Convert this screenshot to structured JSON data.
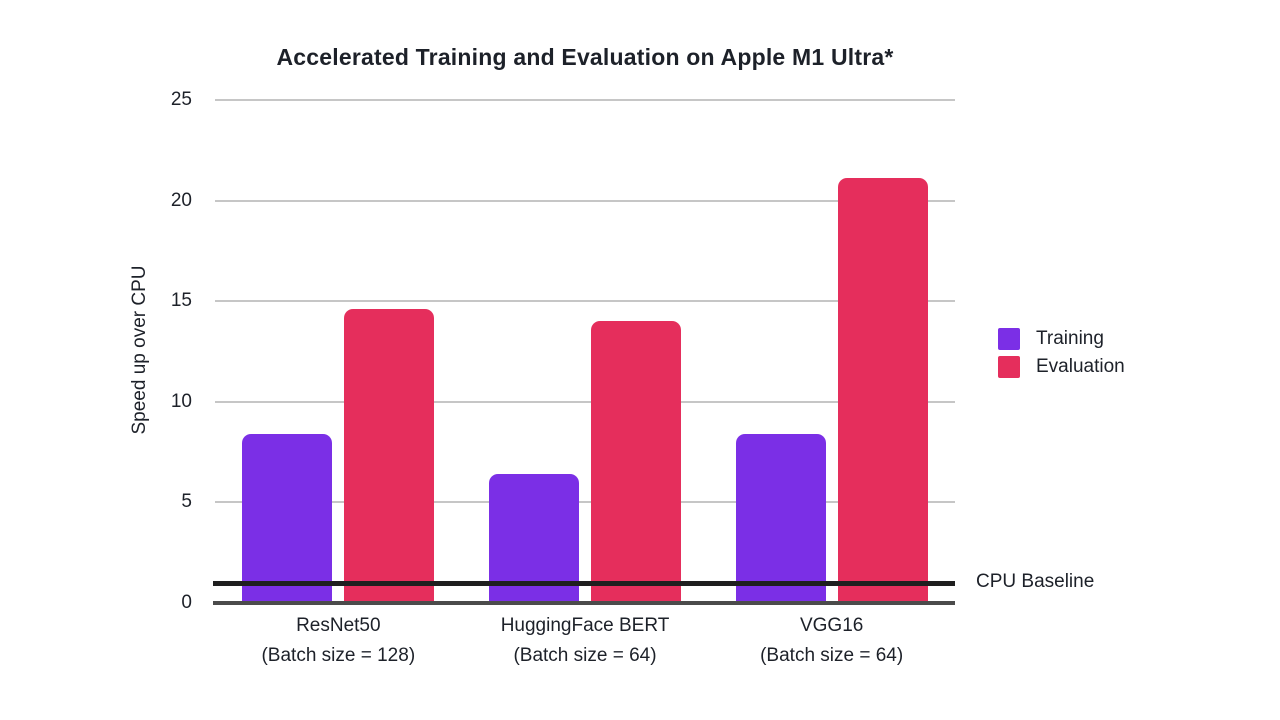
{
  "colors": {
    "background": "#FFFFFF",
    "text": "#1D2129",
    "gridline": "#C6C6C6",
    "axis_line": "#4B4B4B"
  },
  "chart_data": {
    "type": "bar",
    "title": "Accelerated Training and Evaluation on Apple M1 Ultra*",
    "ylabel": "Speed up over CPU",
    "xlabel": "",
    "ylim": [
      0,
      25
    ],
    "yticks": [
      0,
      5,
      10,
      15,
      20,
      25
    ],
    "grid": true,
    "legend_position": "right",
    "categories": [
      "ResNet50",
      "HuggingFace BERT",
      "VGG16"
    ],
    "category_sublabels": [
      "(Batch size = 128)",
      "(Batch size = 64)",
      "(Batch size = 64)"
    ],
    "series": [
      {
        "name": "Training",
        "color": "#7B2FE6",
        "values": [
          8.4,
          6.4,
          8.4
        ]
      },
      {
        "name": "Evaluation",
        "color": "#E52E5C",
        "values": [
          14.6,
          14.0,
          21.1
        ]
      }
    ],
    "baseline": {
      "value": 1,
      "label": "CPU Baseline",
      "color": "#1F1F1F"
    }
  }
}
